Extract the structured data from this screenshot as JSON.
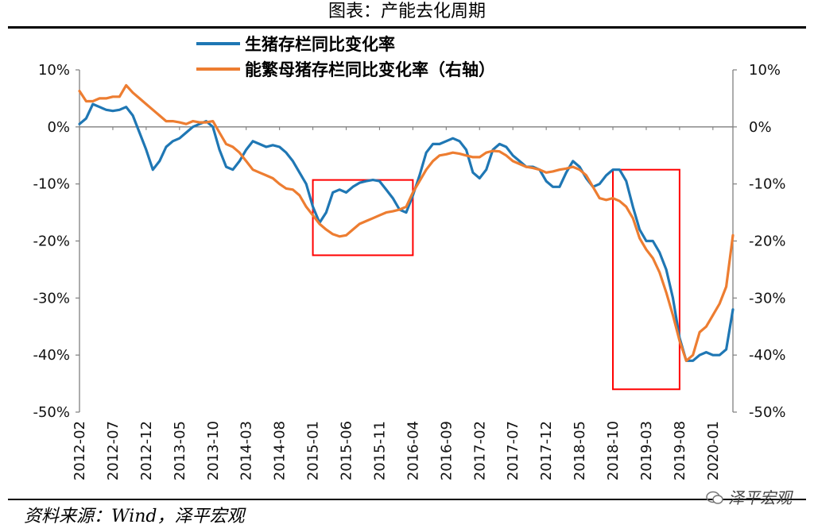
{
  "caption": "图表：产能去化周期",
  "source": "资料来源：Wind，泽平宏观",
  "watermark": "泽平宏观",
  "colors": {
    "series1": "#1f77b4",
    "series2": "#ed7d31",
    "box": "#ff0000",
    "axis": "#7f7f7f"
  },
  "chart_data": {
    "type": "line",
    "title": "",
    "xlabel": "",
    "ylabel": "",
    "ylim": [
      -50,
      10
    ],
    "y2lim": [
      -50,
      10
    ],
    "yticks": [
      "10%",
      "0%",
      "-10%",
      "-20%",
      "-30%",
      "-40%",
      "-50%"
    ],
    "y2ticks": [
      "10%",
      "0%",
      "-10%",
      "-20%",
      "-30%",
      "-40%",
      "-50%"
    ],
    "xticks": [
      "2012-02",
      "2012-07",
      "2012-12",
      "2013-05",
      "2013-10",
      "2014-03",
      "2014-08",
      "2015-01",
      "2015-06",
      "2015-11",
      "2016-04",
      "2016-09",
      "2017-02",
      "2017-07",
      "2017-12",
      "2018-05",
      "2018-10",
      "2019-03",
      "2019-08",
      "2020-01"
    ],
    "x_start": "2012-02",
    "x_end": "2020-04",
    "grid": false,
    "legend_position": "top",
    "series": [
      {
        "name": "生猪存栏同比变化率",
        "color": "#1f77b4",
        "axis": "left",
        "points": [
          [
            "2012-02",
            0.5
          ],
          [
            "2012-03",
            1.5
          ],
          [
            "2012-04",
            4
          ],
          [
            "2012-05",
            3.5
          ],
          [
            "2012-06",
            3
          ],
          [
            "2012-07",
            2.8
          ],
          [
            "2012-08",
            3
          ],
          [
            "2012-09",
            3.5
          ],
          [
            "2012-10",
            2
          ],
          [
            "2012-11",
            -1
          ],
          [
            "2012-12",
            -4
          ],
          [
            "2013-01",
            -7.5
          ],
          [
            "2013-02",
            -6
          ],
          [
            "2013-03",
            -3.5
          ],
          [
            "2013-04",
            -2.5
          ],
          [
            "2013-05",
            -2
          ],
          [
            "2013-06",
            -1
          ],
          [
            "2013-07",
            0
          ],
          [
            "2013-08",
            0.5
          ],
          [
            "2013-09",
            1
          ],
          [
            "2013-10",
            0
          ],
          [
            "2013-11",
            -4
          ],
          [
            "2013-12",
            -7
          ],
          [
            "2014-01",
            -7.5
          ],
          [
            "2014-02",
            -6
          ],
          [
            "2014-03",
            -4
          ],
          [
            "2014-04",
            -2.5
          ],
          [
            "2014-05",
            -3
          ],
          [
            "2014-06",
            -3.5
          ],
          [
            "2014-07",
            -3.2
          ],
          [
            "2014-08",
            -3.5
          ],
          [
            "2014-09",
            -4.5
          ],
          [
            "2014-10",
            -6
          ],
          [
            "2014-11",
            -8
          ],
          [
            "2014-12",
            -10
          ],
          [
            "2015-01",
            -14
          ],
          [
            "2015-02",
            -16.8
          ],
          [
            "2015-03",
            -15
          ],
          [
            "2015-04",
            -11.5
          ],
          [
            "2015-05",
            -11
          ],
          [
            "2015-06",
            -11.5
          ],
          [
            "2015-07",
            -10.5
          ],
          [
            "2015-08",
            -9.8
          ],
          [
            "2015-09",
            -9.5
          ],
          [
            "2015-10",
            -9.3
          ],
          [
            "2015-11",
            -9.5
          ],
          [
            "2015-12",
            -11
          ],
          [
            "2016-01",
            -12.5
          ],
          [
            "2016-02",
            -14.5
          ],
          [
            "2016-03",
            -15
          ],
          [
            "2016-04",
            -12
          ],
          [
            "2016-05",
            -8.5
          ],
          [
            "2016-06",
            -4.5
          ],
          [
            "2016-07",
            -3
          ],
          [
            "2016-08",
            -3
          ],
          [
            "2016-09",
            -2.5
          ],
          [
            "2016-10",
            -2
          ],
          [
            "2016-11",
            -2.5
          ],
          [
            "2016-12",
            -4
          ],
          [
            "2017-01",
            -8
          ],
          [
            "2017-02",
            -9
          ],
          [
            "2017-03",
            -7.5
          ],
          [
            "2017-04",
            -4
          ],
          [
            "2017-05",
            -3
          ],
          [
            "2017-06",
            -3.5
          ],
          [
            "2017-07",
            -5
          ],
          [
            "2017-08",
            -6
          ],
          [
            "2017-09",
            -7
          ],
          [
            "2017-10",
            -7
          ],
          [
            "2017-11",
            -7.5
          ],
          [
            "2017-12",
            -9.5
          ],
          [
            "2018-01",
            -10.5
          ],
          [
            "2018-02",
            -10.5
          ],
          [
            "2018-03",
            -8
          ],
          [
            "2018-04",
            -6
          ],
          [
            "2018-05",
            -7
          ],
          [
            "2018-06",
            -9
          ],
          [
            "2018-07",
            -10.5
          ],
          [
            "2018-08",
            -10
          ],
          [
            "2018-09",
            -8.5
          ],
          [
            "2018-10",
            -7.5
          ],
          [
            "2018-11",
            -7.5
          ],
          [
            "2018-12",
            -9.5
          ],
          [
            "2019-01",
            -14
          ],
          [
            "2019-02",
            -18
          ],
          [
            "2019-03",
            -20
          ],
          [
            "2019-04",
            -20
          ],
          [
            "2019-05",
            -22
          ],
          [
            "2019-06",
            -25
          ],
          [
            "2019-07",
            -30
          ],
          [
            "2019-08",
            -37
          ],
          [
            "2019-09",
            -41
          ],
          [
            "2019-10",
            -41
          ],
          [
            "2019-11",
            -40
          ],
          [
            "2019-12",
            -39.5
          ],
          [
            "2020-01",
            -40
          ],
          [
            "2020-02",
            -40
          ],
          [
            "2020-03",
            -39
          ],
          [
            "2020-04",
            -32
          ]
        ]
      },
      {
        "name": "能繁母猪存栏同比变化率（右轴）",
        "color": "#ed7d31",
        "axis": "right",
        "points": [
          [
            "2012-02",
            6.3
          ],
          [
            "2012-03",
            4.5
          ],
          [
            "2012-04",
            4.5
          ],
          [
            "2012-05",
            5
          ],
          [
            "2012-06",
            5
          ],
          [
            "2012-07",
            5.3
          ],
          [
            "2012-08",
            5.3
          ],
          [
            "2012-09",
            7.3
          ],
          [
            "2012-10",
            6
          ],
          [
            "2012-11",
            5
          ],
          [
            "2012-12",
            4
          ],
          [
            "2013-01",
            3
          ],
          [
            "2013-02",
            2
          ],
          [
            "2013-03",
            1
          ],
          [
            "2013-04",
            1
          ],
          [
            "2013-05",
            0.8
          ],
          [
            "2013-06",
            0.5
          ],
          [
            "2013-07",
            1
          ],
          [
            "2013-08",
            0.8
          ],
          [
            "2013-09",
            0.8
          ],
          [
            "2013-10",
            1
          ],
          [
            "2013-11",
            -1
          ],
          [
            "2013-12",
            -3
          ],
          [
            "2014-01",
            -3.5
          ],
          [
            "2014-02",
            -4.5
          ],
          [
            "2014-03",
            -6
          ],
          [
            "2014-04",
            -7.5
          ],
          [
            "2014-05",
            -8
          ],
          [
            "2014-06",
            -8.5
          ],
          [
            "2014-07",
            -9
          ],
          [
            "2014-08",
            -10
          ],
          [
            "2014-09",
            -10.8
          ],
          [
            "2014-10",
            -11
          ],
          [
            "2014-11",
            -12
          ],
          [
            "2014-12",
            -14
          ],
          [
            "2015-01",
            -15.5
          ],
          [
            "2015-02",
            -17
          ],
          [
            "2015-03",
            -18
          ],
          [
            "2015-04",
            -18.8
          ],
          [
            "2015-05",
            -19.2
          ],
          [
            "2015-06",
            -19
          ],
          [
            "2015-07",
            -18
          ],
          [
            "2015-08",
            -17
          ],
          [
            "2015-09",
            -16.5
          ],
          [
            "2015-10",
            -16
          ],
          [
            "2015-11",
            -15.5
          ],
          [
            "2015-12",
            -15
          ],
          [
            "2016-01",
            -14.8
          ],
          [
            "2016-02",
            -14.5
          ],
          [
            "2016-03",
            -14
          ],
          [
            "2016-04",
            -11.5
          ],
          [
            "2016-05",
            -9.5
          ],
          [
            "2016-06",
            -7.5
          ],
          [
            "2016-07",
            -6
          ],
          [
            "2016-08",
            -5
          ],
          [
            "2016-09",
            -4.8
          ],
          [
            "2016-10",
            -4.5
          ],
          [
            "2016-11",
            -4.7
          ],
          [
            "2016-12",
            -5
          ],
          [
            "2017-01",
            -5.3
          ],
          [
            "2017-02",
            -5.3
          ],
          [
            "2017-03",
            -4.5
          ],
          [
            "2017-04",
            -4.2
          ],
          [
            "2017-05",
            -4.3
          ],
          [
            "2017-06",
            -5
          ],
          [
            "2017-07",
            -6
          ],
          [
            "2017-08",
            -6.5
          ],
          [
            "2017-09",
            -7
          ],
          [
            "2017-10",
            -7.2
          ],
          [
            "2017-11",
            -7.5
          ],
          [
            "2017-12",
            -8
          ],
          [
            "2018-01",
            -7.8
          ],
          [
            "2018-02",
            -7.5
          ],
          [
            "2018-03",
            -7.3
          ],
          [
            "2018-04",
            -7
          ],
          [
            "2018-05",
            -7.5
          ],
          [
            "2018-06",
            -8.5
          ],
          [
            "2018-07",
            -10.5
          ],
          [
            "2018-08",
            -12.5
          ],
          [
            "2018-09",
            -12.8
          ],
          [
            "2018-10",
            -12.5
          ],
          [
            "2018-11",
            -13
          ],
          [
            "2018-12",
            -14
          ],
          [
            "2019-01",
            -16
          ],
          [
            "2019-02",
            -19.5
          ],
          [
            "2019-03",
            -21.5
          ],
          [
            "2019-04",
            -23
          ],
          [
            "2019-05",
            -25.5
          ],
          [
            "2019-06",
            -29
          ],
          [
            "2019-07",
            -33
          ],
          [
            "2019-08",
            -37.5
          ],
          [
            "2019-09",
            -41
          ],
          [
            "2019-10",
            -40
          ],
          [
            "2019-11",
            -36
          ],
          [
            "2019-12",
            -35
          ],
          [
            "2020-01",
            -33
          ],
          [
            "2020-02",
            -31
          ],
          [
            "2020-03",
            -28
          ],
          [
            "2020-04",
            -19
          ]
        ]
      }
    ],
    "highlight_boxes": [
      {
        "x_from": "2015-01",
        "x_to": "2016-04",
        "y_from": -9.3,
        "y_to": -22.5
      },
      {
        "x_from": "2018-10",
        "x_to": "2019-08",
        "y_from": -7.5,
        "y_to": -46
      }
    ]
  }
}
